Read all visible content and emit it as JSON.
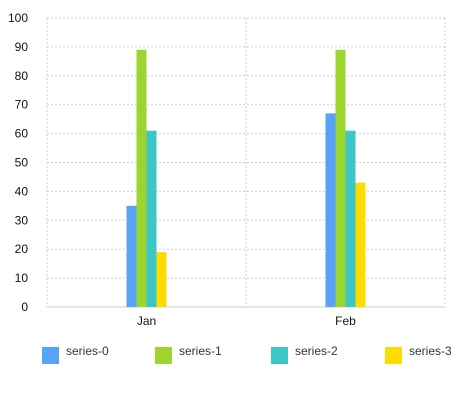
{
  "chart_data": {
    "type": "bar",
    "categories": [
      "Jan",
      "Feb"
    ],
    "series": [
      {
        "name": "series-0",
        "values": [
          35,
          67
        ],
        "color": "#56a3f8"
      },
      {
        "name": "series-1",
        "values": [
          89,
          89
        ],
        "color": "#9bd52e"
      },
      {
        "name": "series-2",
        "values": [
          61,
          61
        ],
        "color": "#3ec6c6"
      },
      {
        "name": "series-3",
        "values": [
          19,
          43
        ],
        "color": "#ffdc00"
      }
    ],
    "yticks": [
      0,
      10,
      20,
      30,
      40,
      50,
      60,
      70,
      80,
      90,
      100
    ],
    "ylim": [
      0,
      100
    ],
    "grid": true,
    "legend_position": "bottom"
  }
}
